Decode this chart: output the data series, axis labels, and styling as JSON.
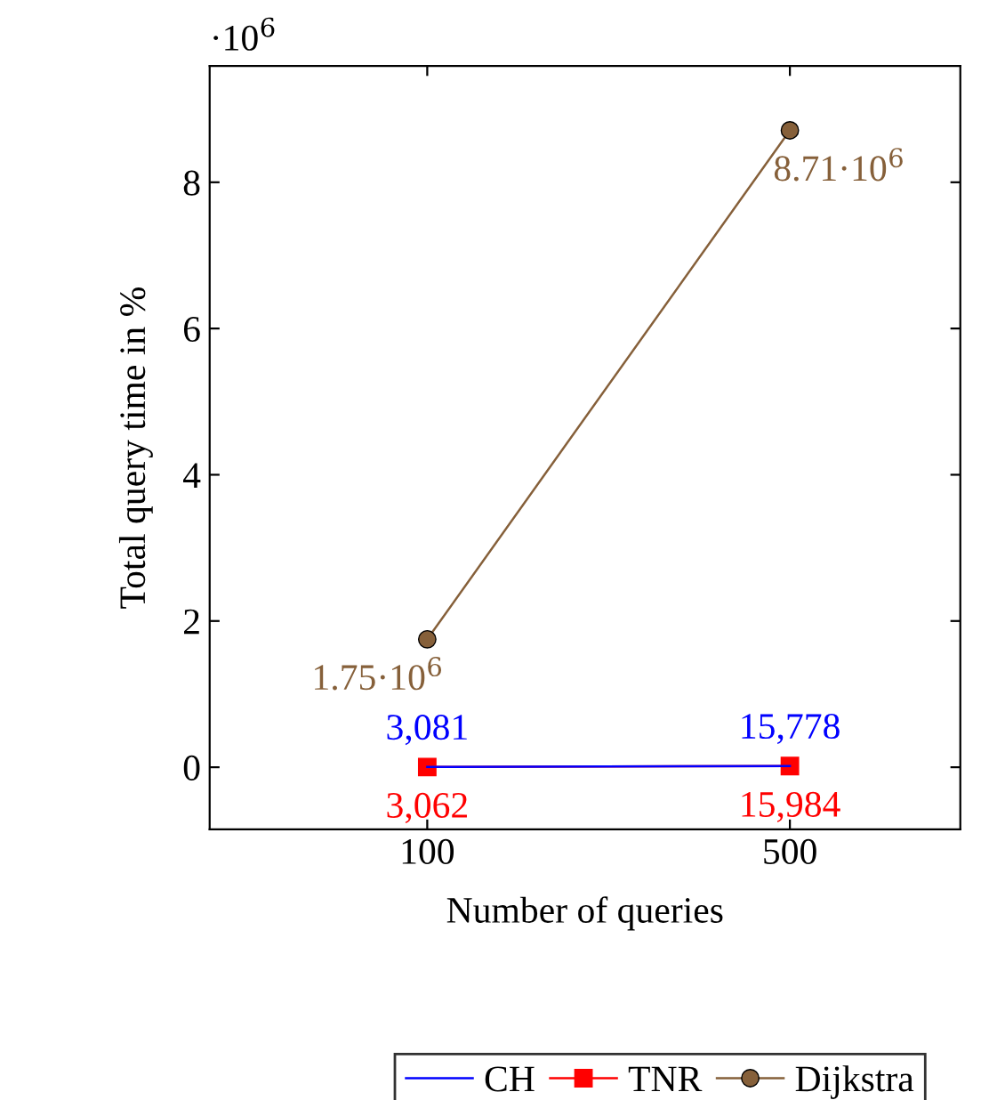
{
  "chart_data": {
    "type": "line",
    "xlabel": "Number of queries",
    "ylabel": "Total query time in %",
    "categories": [
      "100",
      "500"
    ],
    "series": [
      {
        "name": "CH",
        "color": "#0000ff",
        "values": [
          0.003,
          0.016
        ],
        "marker": "none"
      },
      {
        "name": "TNR",
        "color": "#ff0000",
        "values": [
          0.003,
          0.016
        ],
        "marker": "square"
      },
      {
        "name": "Dijkstra",
        "color": "#86603a",
        "values": [
          1.75,
          8.71
        ],
        "marker": "circle"
      }
    ],
    "ylim": [
      -0.85,
      9.59
    ],
    "yticks": [
      0,
      2,
      4,
      6,
      8
    ],
    "annotations": [
      "·10$^{6}$",
      {
        "text": "3,081",
        "x": "100",
        "y": 0.003
      },
      {
        "text": "15,778",
        "x": "500",
        "y": 0.016
      },
      {
        "text": "3,062",
        "x": "100",
        "y": 0.003
      },
      {
        "text": "15,984",
        "x": "500",
        "y": 0.016
      },
      {
        "text": "1.75·10$^{6}$",
        "x": "100",
        "y": 1.75
      },
      {
        "text": "8.71·10$^{6}$",
        "x": "500",
        "y": 8.71
      }
    ],
    "grid": false,
    "legend": "bottom"
  }
}
